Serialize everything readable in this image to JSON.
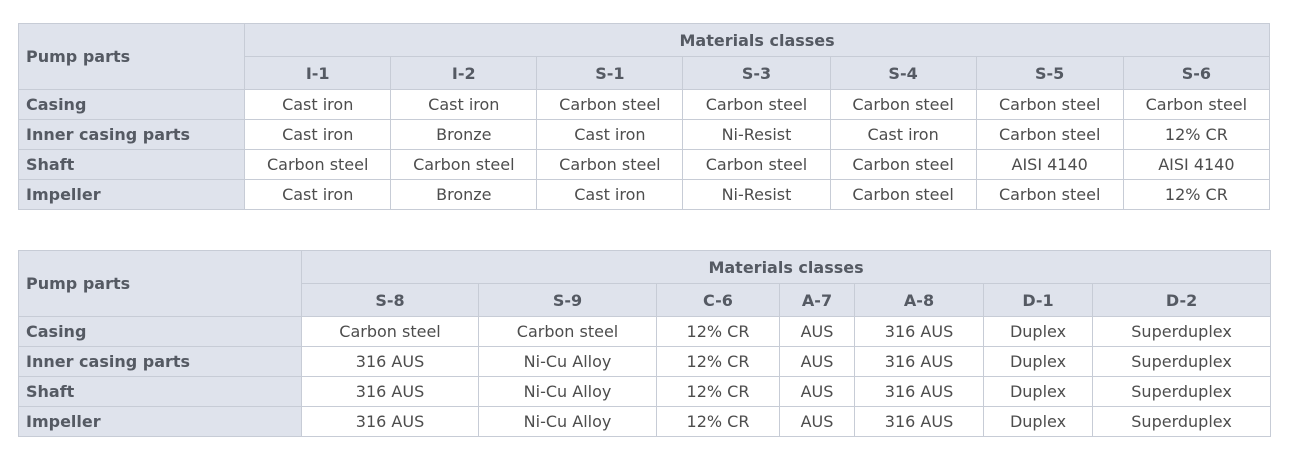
{
  "tables": [
    {
      "row_header_label": "Pump parts",
      "group_label": "Materials classes",
      "classes": [
        "I-1",
        "I-2",
        "S-1",
        "S-3",
        "S-4",
        "S-5",
        "S-6"
      ],
      "rows": [
        {
          "part": "Casing",
          "values": [
            "Cast iron",
            "Cast iron",
            "Carbon steel",
            "Carbon steel",
            "Carbon steel",
            "Carbon steel",
            "Carbon steel"
          ]
        },
        {
          "part": "Inner casing parts",
          "values": [
            "Cast iron",
            "Bronze",
            "Cast iron",
            "Ni-Resist",
            "Cast iron",
            "Carbon steel",
            "12% CR"
          ]
        },
        {
          "part": "Shaft",
          "values": [
            "Carbon steel",
            "Carbon steel",
            "Carbon steel",
            "Carbon steel",
            "Carbon steel",
            "AISI 4140",
            "AISI 4140"
          ]
        },
        {
          "part": "Impeller",
          "values": [
            "Cast iron",
            "Bronze",
            "Cast iron",
            "Ni-Resist",
            "Carbon steel",
            "Carbon steel",
            "12% CR"
          ]
        }
      ]
    },
    {
      "row_header_label": "Pump parts",
      "group_label": "Materials classes",
      "classes": [
        "S-8",
        "S-9",
        "C-6",
        "A-7",
        "A-8",
        "D-1",
        "D-2"
      ],
      "rows": [
        {
          "part": "Casing",
          "values": [
            "Carbon steel",
            "Carbon steel",
            "12% CR",
            "AUS",
            "316 AUS",
            "Duplex",
            "Superduplex"
          ]
        },
        {
          "part": "Inner casing parts",
          "values": [
            "316 AUS",
            "Ni-Cu Alloy",
            "12% CR",
            "AUS",
            "316 AUS",
            "Duplex",
            "Superduplex"
          ]
        },
        {
          "part": "Shaft",
          "values": [
            "316 AUS",
            "Ni-Cu Alloy",
            "12% CR",
            "AUS",
            "316 AUS",
            "Duplex",
            "Superduplex"
          ]
        },
        {
          "part": "Impeller",
          "values": [
            "316 AUS",
            "Ni-Cu Alloy",
            "12% CR",
            "AUS",
            "316 AUS",
            "Duplex",
            "Superduplex"
          ]
        }
      ]
    }
  ],
  "colors": {
    "header_bg": "#dfe3ec",
    "border": "#c7ccd6",
    "accent_red": "#cc1f2d"
  }
}
